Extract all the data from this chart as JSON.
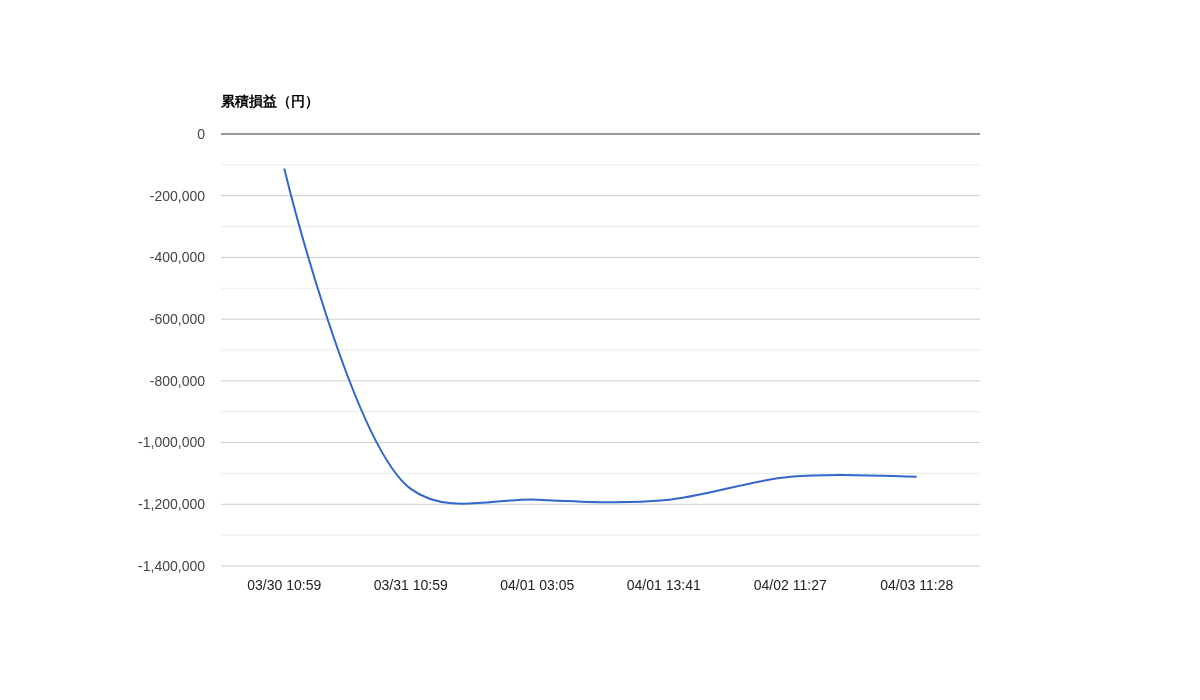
{
  "chart_data": {
    "type": "line",
    "ylabel": "累積損益（円）",
    "categories": [
      "03/30 10:59",
      "03/31 10:59",
      "04/01 03:05",
      "04/01 13:41",
      "04/02 11:27",
      "04/03 11:28"
    ],
    "series": [
      {
        "color": "#3366cc",
        "values": [
          -112000,
          -1150000,
          -1185000,
          -1187000,
          -1111000,
          -1111000
        ]
      }
    ],
    "ylim": [
      -1400000,
      0
    ],
    "yticks": [
      {
        "value": -1400000,
        "label": "-1,400,000"
      },
      {
        "value": -1200000,
        "label": "-1,200,000"
      },
      {
        "value": -1000000,
        "label": "-1,000,000"
      },
      {
        "value": -800000,
        "label": "-800,000"
      },
      {
        "value": -600000,
        "label": "-600,000"
      },
      {
        "value": -400000,
        "label": "-400,000"
      },
      {
        "value": -200000,
        "label": "-200,000"
      },
      0
    ],
    "grid": true
  }
}
